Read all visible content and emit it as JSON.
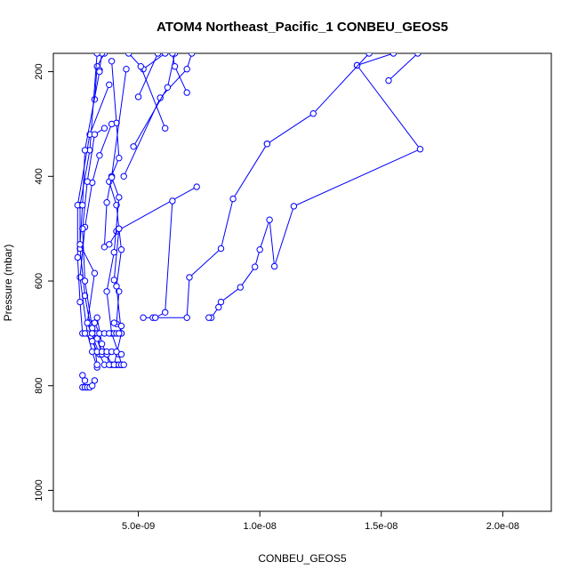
{
  "chart_data": {
    "type": "line",
    "title": "ATOM4 Northeast_Pacific_1 CONBEU_GEOS5",
    "xlabel": "CONBEU_GEOS5",
    "ylabel": "Pressure (mbar)",
    "xlim": [
      1.5e-09,
      2.2e-08
    ],
    "ylim": [
      1040,
      165
    ],
    "y_reversed": true,
    "grid": false,
    "x_ticks": [
      {
        "value": 5e-09,
        "label": "5.0e-09"
      },
      {
        "value": 1e-08,
        "label": "1.0e-08"
      },
      {
        "value": 1.5e-08,
        "label": "1.5e-08"
      },
      {
        "value": 2e-08,
        "label": "2.0e-08"
      }
    ],
    "y_ticks": [
      {
        "value": 200,
        "label": "200"
      },
      {
        "value": 400,
        "label": "400"
      },
      {
        "value": 600,
        "label": "600"
      },
      {
        "value": 800,
        "label": "800"
      },
      {
        "value": 1000,
        "label": "1000"
      }
    ],
    "color": "#0000ff",
    "series": [
      {
        "points": [
          [
            1.4e-08,
            188
          ],
          [
            1.66e-08,
            348
          ],
          [
            1.14e-08,
            457
          ],
          [
            1.06e-08,
            572
          ],
          [
            1.04e-08,
            483
          ],
          [
            1e-08,
            540
          ],
          [
            9.8e-09,
            573
          ],
          [
            9.2e-09,
            612
          ],
          [
            8.4e-09,
            640
          ],
          [
            8.3e-09,
            650
          ],
          [
            8e-09,
            670
          ],
          [
            7.9e-09,
            670
          ]
        ]
      },
      {
        "points": [
          [
            1.53e-08,
            217
          ],
          [
            1.65e-08,
            165
          ]
        ]
      },
      {
        "points": [
          [
            1.4e-08,
            188
          ],
          [
            1.55e-08,
            165
          ]
        ]
      },
      {
        "points": [
          [
            1.03e-08,
            338
          ],
          [
            1.22e-08,
            280
          ],
          [
            1.45e-08,
            165
          ]
        ]
      },
      {
        "points": [
          [
            1.03e-08,
            338
          ],
          [
            8.9e-09,
            443
          ],
          [
            8.4e-09,
            538
          ],
          [
            7.1e-09,
            593
          ],
          [
            7e-09,
            670
          ],
          [
            5.6e-09,
            670
          ],
          [
            5.2e-09,
            670
          ]
        ]
      },
      {
        "points": [
          [
            7.4e-09,
            420
          ],
          [
            4.1e-09,
            505
          ]
        ]
      },
      {
        "points": [
          [
            6.4e-09,
            447
          ],
          [
            6.1e-09,
            660
          ],
          [
            5.7e-09,
            670
          ]
        ]
      },
      {
        "points": [
          [
            4.4e-09,
            400
          ],
          [
            5.9e-09,
            250
          ],
          [
            7e-09,
            195
          ],
          [
            7.2e-09,
            165
          ]
        ]
      },
      {
        "points": [
          [
            4.8e-09,
            343
          ],
          [
            6.2e-09,
            230
          ],
          [
            6.5e-09,
            165
          ]
        ]
      },
      {
        "points": [
          [
            7e-09,
            240
          ],
          [
            6.5e-09,
            190
          ],
          [
            6.4e-09,
            165
          ]
        ]
      },
      {
        "points": [
          [
            5e-09,
            248
          ],
          [
            5.8e-09,
            165
          ]
        ]
      },
      {
        "points": [
          [
            5.2e-09,
            195
          ],
          [
            6.1e-09,
            165
          ]
        ]
      },
      {
        "points": [
          [
            6.1e-09,
            308
          ],
          [
            5.1e-09,
            190
          ],
          [
            4.6e-09,
            165
          ]
        ]
      },
      {
        "points": [
          [
            3.9e-09,
            180
          ],
          [
            4.1e-09,
            298
          ],
          [
            4.2e-09,
            365
          ],
          [
            3.8e-09,
            410
          ],
          [
            4.1e-09,
            455
          ],
          [
            4.2e-09,
            500
          ],
          [
            4e-09,
            598
          ],
          [
            4.2e-09,
            620
          ],
          [
            4.1e-09,
            682
          ]
        ]
      },
      {
        "points": [
          [
            3.2e-09,
            253
          ],
          [
            3.3e-09,
            190
          ],
          [
            3.6e-09,
            165
          ]
        ]
      },
      {
        "points": [
          [
            3.4e-09,
            197
          ],
          [
            3.5e-09,
            165
          ]
        ]
      },
      {
        "points": [
          [
            3.3e-09,
            165
          ],
          [
            3e-09,
            350
          ],
          [
            2.6e-09,
            455
          ],
          [
            2.6e-09,
            538
          ],
          [
            2.8e-09,
            628
          ],
          [
            3e-09,
            680
          ],
          [
            3.3e-09,
            700
          ],
          [
            3.5e-09,
            740
          ]
        ]
      },
      {
        "points": [
          [
            3.9e-09,
            300
          ],
          [
            3.4e-09,
            360
          ],
          [
            3.1e-09,
            412
          ],
          [
            2.8e-09,
            497
          ],
          [
            2.6e-09,
            593
          ],
          [
            2.9e-09,
            700
          ],
          [
            3.1e-09,
            735
          ],
          [
            3.3e-09,
            765
          ]
        ]
      },
      {
        "points": [
          [
            3.8e-09,
            225
          ],
          [
            3e-09,
            320
          ],
          [
            2.5e-09,
            455
          ],
          [
            2.5e-09,
            555
          ],
          [
            2.6e-09,
            640
          ],
          [
            2.7e-09,
            700
          ]
        ]
      },
      {
        "points": [
          [
            3.6e-09,
            308
          ],
          [
            3.2e-09,
            320
          ],
          [
            2.9e-09,
            410
          ],
          [
            2.7e-09,
            500
          ],
          [
            2.8e-09,
            600
          ],
          [
            3.1e-09,
            690
          ],
          [
            3.3e-09,
            760
          ]
        ]
      },
      {
        "points": [
          [
            3.4e-09,
            200
          ],
          [
            2.8e-09,
            350
          ],
          [
            2.7e-09,
            455
          ],
          [
            2.6e-09,
            530
          ],
          [
            3.2e-09,
            585
          ],
          [
            2.9e-09,
            680
          ],
          [
            3.4e-09,
            740
          ],
          [
            3.6e-09,
            760
          ]
        ]
      },
      {
        "points": [
          [
            4.5e-09,
            195
          ],
          [
            3.9e-09,
            400
          ],
          [
            3.7e-09,
            450
          ],
          [
            3.6e-09,
            535
          ],
          [
            3.8e-09,
            530
          ],
          [
            4.2e-09,
            500
          ],
          [
            4.3e-09,
            540
          ],
          [
            4.1e-09,
            610
          ],
          [
            4.3e-09,
            700
          ],
          [
            4e-09,
            760
          ]
        ]
      },
      {
        "points": [
          [
            3.9e-09,
            402
          ],
          [
            4.2e-09,
            440
          ],
          [
            4e-09,
            545
          ],
          [
            3.7e-09,
            620
          ],
          [
            3.9e-09,
            700
          ],
          [
            4.2e-09,
            740
          ],
          [
            4.3e-09,
            760
          ]
        ]
      },
      {
        "points": [
          [
            2.7e-09,
            780
          ],
          [
            2.8e-09,
            790
          ],
          [
            2.7e-09,
            803
          ],
          [
            2.8e-09,
            803
          ],
          [
            2.9e-09,
            803
          ],
          [
            3e-09,
            803
          ],
          [
            3.1e-09,
            800
          ],
          [
            3.2e-09,
            790
          ]
        ]
      },
      {
        "points": [
          [
            3.1e-09,
            700
          ],
          [
            3.3e-09,
            710
          ],
          [
            3.5e-09,
            740
          ],
          [
            3.7e-09,
            740
          ],
          [
            3.9e-09,
            760
          ],
          [
            4.1e-09,
            760
          ]
        ]
      },
      {
        "points": [
          [
            3.3e-09,
            670
          ],
          [
            3.5e-09,
            720
          ],
          [
            3.7e-09,
            740
          ],
          [
            3.8e-09,
            760
          ],
          [
            4e-09,
            760
          ],
          [
            4.2e-09,
            760
          ],
          [
            4.3e-09,
            760
          ],
          [
            4.4e-09,
            760
          ]
        ]
      },
      {
        "points": [
          [
            3.2e-09,
            680
          ],
          [
            3.4e-09,
            700
          ],
          [
            3.6e-09,
            700
          ],
          [
            3.8e-09,
            700
          ],
          [
            4e-09,
            700
          ],
          [
            4.1e-09,
            700
          ],
          [
            4.3e-09,
            700
          ]
        ]
      },
      {
        "points": [
          [
            2.8e-09,
            700
          ],
          [
            3.1e-09,
            715
          ],
          [
            3.3e-09,
            735
          ],
          [
            3.5e-09,
            735
          ],
          [
            3.7e-09,
            735
          ],
          [
            3.9e-09,
            735
          ],
          [
            4.1e-09,
            735
          ],
          [
            4.3e-09,
            740
          ]
        ]
      },
      {
        "points": [
          [
            4e-09,
            680
          ],
          [
            4.3e-09,
            686
          ],
          [
            4.2e-09,
            700
          ]
        ]
      }
    ]
  }
}
